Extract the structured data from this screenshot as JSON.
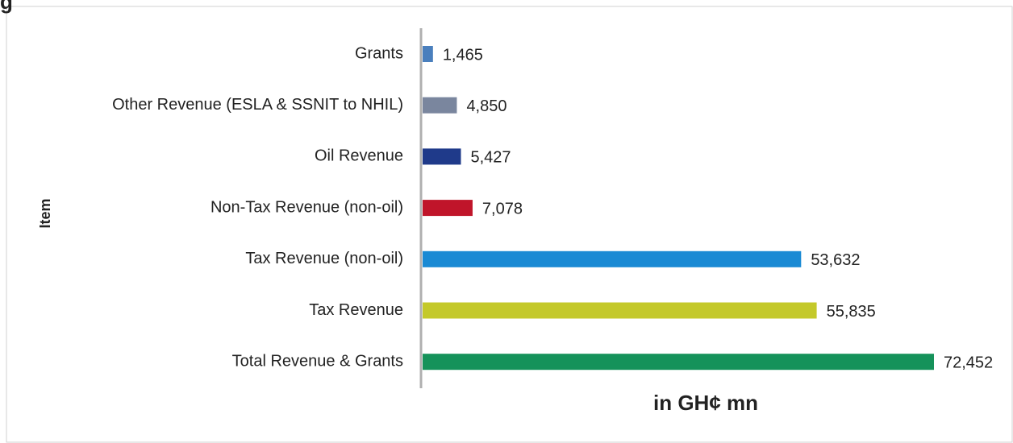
{
  "chart_data": {
    "type": "bar",
    "orientation": "horizontal",
    "title": "g",
    "y_label": "Item",
    "x_label": "in GH¢ mn",
    "categories": [
      "Grants",
      "Other Revenue (ESLA & SSNIT to NHIL)",
      "Oil Revenue",
      "Non-Tax Revenue (non-oil)",
      "Tax Revenue (non-oil)",
      "Tax Revenue",
      "Total Revenue & Grants"
    ],
    "values": [
      1465,
      4850,
      5427,
      7078,
      53632,
      55835,
      72452
    ],
    "value_labels": [
      "1,465",
      "4,850",
      "5,427",
      "7,078",
      "53,632",
      "55,835",
      "72,452"
    ],
    "colors": [
      "#4a7fbd",
      "#7a869e",
      "#1f3a8a",
      "#c0152a",
      "#1a8ad4",
      "#c4c92a",
      "#15925a"
    ]
  }
}
